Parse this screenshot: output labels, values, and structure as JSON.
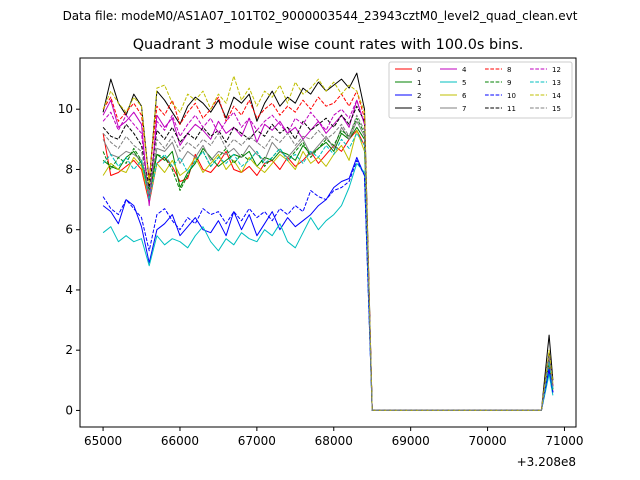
{
  "suptitle": "Data file: modeM0/AS1A07_101T02_9000003544_23943cztM0_level2_quad_clean.evt",
  "chart_data": {
    "type": "line",
    "title": "Quadrant 3 module wise count rates with 100.0s bins.",
    "xlabel": "",
    "ylabel": "",
    "x_offset_label": "+3.208e8",
    "xlim": [
      64700,
      71150
    ],
    "ylim": [
      -0.55,
      11.7
    ],
    "xticks": [
      65000,
      66000,
      67000,
      68000,
      69000,
      70000,
      71000
    ],
    "yticks": [
      0,
      2,
      4,
      6,
      8,
      10
    ],
    "grid": false,
    "legend_position": "top-right",
    "legend_columns": 4,
    "x": [
      65000,
      65100,
      65200,
      65300,
      65400,
      65500,
      65600,
      65700,
      65800,
      65900,
      66000,
      66100,
      66200,
      66300,
      66400,
      66500,
      66600,
      66700,
      66800,
      66900,
      67000,
      67100,
      67200,
      67300,
      67400,
      67500,
      67600,
      67700,
      67800,
      67900,
      68000,
      68100,
      68200,
      68300,
      68400,
      68500,
      70700,
      70800,
      70850
    ],
    "series": [
      {
        "name": "0",
        "color": "#ff0000",
        "dash": "solid",
        "values": [
          9.2,
          7.8,
          7.9,
          8.1,
          8.3,
          8.0,
          6.9,
          8.2,
          8.4,
          8.1,
          7.6,
          7.7,
          8.5,
          8.0,
          7.9,
          8.2,
          8.6,
          8.0,
          7.9,
          8.1,
          7.8,
          8.2,
          8.3,
          8.0,
          8.4,
          8.1,
          8.3,
          8.6,
          8.2,
          8.5,
          8.8,
          8.6,
          9.0,
          9.3,
          8.8,
          0.0,
          0.0,
          1.5,
          0.6
        ]
      },
      {
        "name": "1",
        "color": "#008000",
        "dash": "solid",
        "values": [
          8.3,
          8.1,
          8.0,
          8.4,
          8.6,
          8.2,
          7.1,
          8.5,
          8.3,
          8.6,
          7.4,
          7.9,
          8.2,
          8.7,
          8.4,
          8.1,
          8.3,
          8.5,
          8.4,
          8.6,
          8.1,
          8.4,
          8.3,
          8.6,
          8.5,
          8.3,
          8.8,
          8.5,
          8.7,
          8.9,
          8.6,
          9.2,
          9.0,
          9.4,
          9.0,
          0.0,
          0.0,
          1.6,
          0.7
        ]
      },
      {
        "name": "2",
        "color": "#0000ff",
        "dash": "solid",
        "values": [
          6.8,
          6.6,
          6.2,
          7.0,
          6.8,
          6.1,
          4.9,
          6.0,
          6.2,
          6.5,
          5.8,
          6.1,
          6.4,
          6.0,
          5.9,
          6.3,
          5.8,
          6.6,
          6.0,
          6.5,
          5.8,
          6.2,
          6.6,
          6.0,
          6.4,
          6.1,
          6.3,
          6.5,
          6.8,
          7.0,
          7.4,
          7.6,
          7.7,
          8.4,
          7.8,
          0.0,
          0.0,
          1.3,
          0.6
        ]
      },
      {
        "name": "3",
        "color": "#000000",
        "dash": "solid",
        "values": [
          9.9,
          11.0,
          10.2,
          9.8,
          10.5,
          10.1,
          7.6,
          10.6,
          10.3,
          9.9,
          9.5,
          10.1,
          10.4,
          10.2,
          9.9,
          10.3,
          9.7,
          10.4,
          10.2,
          10.5,
          9.6,
          10.2,
          10.6,
          10.1,
          10.4,
          10.2,
          10.7,
          10.5,
          10.9,
          10.6,
          10.8,
          11.0,
          10.7,
          11.2,
          10.0,
          0.0,
          0.0,
          2.5,
          1.0
        ]
      },
      {
        "name": "4",
        "color": "#bf00bf",
        "dash": "solid",
        "values": [
          9.8,
          10.3,
          9.4,
          9.6,
          9.9,
          9.5,
          6.8,
          9.8,
          9.4,
          9.7,
          8.8,
          9.2,
          9.5,
          9.3,
          9.0,
          9.6,
          9.2,
          9.4,
          9.1,
          9.7,
          8.9,
          9.5,
          9.3,
          9.6,
          9.2,
          9.4,
          9.0,
          9.3,
          9.6,
          9.2,
          9.5,
          9.8,
          9.4,
          10.3,
          9.5,
          0.0,
          0.0,
          1.8,
          0.8
        ]
      },
      {
        "name": "5",
        "color": "#00bfbf",
        "dash": "solid",
        "values": [
          5.9,
          6.1,
          5.6,
          5.8,
          5.6,
          5.7,
          4.8,
          5.8,
          5.5,
          5.7,
          5.6,
          5.4,
          5.8,
          6.1,
          5.6,
          5.3,
          5.7,
          5.5,
          5.9,
          5.7,
          5.6,
          6.0,
          5.8,
          6.2,
          5.6,
          5.4,
          5.9,
          6.4,
          6.0,
          6.3,
          6.5,
          6.8,
          7.4,
          8.2,
          7.9,
          0.0,
          0.0,
          1.2,
          0.5
        ]
      },
      {
        "name": "6",
        "color": "#bfbf00",
        "dash": "solid",
        "values": [
          7.8,
          8.2,
          8.0,
          7.9,
          8.4,
          8.1,
          7.0,
          8.2,
          7.9,
          8.3,
          7.8,
          8.0,
          8.4,
          7.9,
          8.2,
          8.5,
          8.0,
          8.3,
          7.9,
          8.4,
          8.1,
          7.9,
          8.2,
          8.5,
          8.3,
          8.0,
          8.6,
          8.2,
          8.4,
          8.1,
          8.5,
          8.8,
          8.3,
          9.3,
          8.6,
          0.0,
          0.0,
          1.7,
          0.7
        ]
      },
      {
        "name": "7",
        "color": "#808080",
        "dash": "solid",
        "values": [
          9.0,
          8.5,
          8.4,
          8.6,
          8.5,
          8.3,
          7.2,
          8.7,
          8.6,
          8.9,
          8.2,
          8.6,
          8.4,
          8.8,
          8.3,
          8.6,
          8.5,
          8.7,
          8.4,
          8.8,
          8.5,
          8.3,
          8.9,
          8.6,
          8.4,
          8.7,
          9.0,
          8.5,
          8.8,
          9.1,
          8.7,
          9.4,
          9.0,
          9.6,
          9.1,
          0.0,
          0.0,
          1.8,
          0.8
        ]
      },
      {
        "name": "8",
        "color": "#ff0000",
        "dash": "dashed",
        "values": [
          10.0,
          10.4,
          9.6,
          9.9,
          10.2,
          9.8,
          7.7,
          10.1,
          9.8,
          10.3,
          9.5,
          9.9,
          10.2,
          9.7,
          10.0,
          10.4,
          9.6,
          10.1,
          9.8,
          10.3,
          9.7,
          10.0,
          10.2,
          9.8,
          10.1,
          9.9,
          10.3,
          10.0,
          10.4,
          10.1,
          10.2,
          10.5,
          10.1,
          10.6,
          9.7,
          0.0,
          0.0,
          1.9,
          0.8
        ]
      },
      {
        "name": "9",
        "color": "#008000",
        "dash": "dashed",
        "values": [
          8.6,
          8.0,
          8.4,
          8.2,
          8.7,
          8.3,
          7.3,
          8.5,
          8.4,
          8.0,
          7.3,
          7.8,
          8.3,
          8.6,
          8.1,
          8.4,
          8.7,
          8.2,
          8.5,
          8.3,
          8.6,
          8.1,
          8.4,
          8.7,
          8.3,
          8.6,
          8.9,
          8.4,
          8.7,
          9.0,
          8.8,
          9.3,
          9.1,
          9.7,
          9.2,
          0.0,
          0.0,
          1.7,
          0.7
        ]
      },
      {
        "name": "10",
        "color": "#0000ff",
        "dash": "dashed",
        "values": [
          7.1,
          6.7,
          6.5,
          7.0,
          6.7,
          6.4,
          5.3,
          6.5,
          6.7,
          6.3,
          6.0,
          6.4,
          6.2,
          6.7,
          6.5,
          6.6,
          6.2,
          6.6,
          6.3,
          6.7,
          6.4,
          6.6,
          6.3,
          6.7,
          6.5,
          6.8,
          6.6,
          7.3,
          7.1,
          7.0,
          7.3,
          7.4,
          7.6,
          8.3,
          7.8,
          0.0,
          0.0,
          1.4,
          0.6
        ]
      },
      {
        "name": "11",
        "color": "#000000",
        "dash": "dashed",
        "values": [
          9.4,
          9.1,
          9.0,
          9.5,
          9.2,
          8.8,
          7.4,
          9.3,
          9.0,
          9.4,
          8.9,
          9.2,
          9.0,
          9.4,
          9.1,
          9.3,
          8.9,
          9.4,
          9.2,
          9.0,
          9.3,
          9.1,
          9.5,
          9.2,
          9.4,
          9.0,
          9.6,
          9.3,
          9.5,
          9.7,
          9.4,
          9.8,
          9.5,
          10.1,
          9.6,
          0.0,
          0.0,
          1.9,
          0.8
        ]
      },
      {
        "name": "12",
        "color": "#bf00bf",
        "dash": "dashed",
        "values": [
          9.6,
          9.9,
          9.3,
          9.8,
          9.5,
          9.2,
          6.9,
          9.6,
          9.3,
          9.8,
          9.1,
          9.5,
          9.8,
          9.4,
          9.7,
          9.2,
          9.6,
          9.9,
          9.4,
          9.7,
          9.3,
          9.6,
          9.8,
          9.5,
          9.2,
          9.7,
          9.5,
          9.9,
          9.6,
          9.3,
          9.8,
          10.0,
          9.7,
          10.3,
          9.5,
          0.0,
          0.0,
          1.8,
          0.8
        ]
      },
      {
        "name": "13",
        "color": "#00bfbf",
        "dash": "dashed",
        "values": [
          8.2,
          8.5,
          8.1,
          8.4,
          8.0,
          8.3,
          7.0,
          8.2,
          8.5,
          8.1,
          8.4,
          7.9,
          8.3,
          8.6,
          8.1,
          8.4,
          8.2,
          8.5,
          8.1,
          8.3,
          8.6,
          8.2,
          8.4,
          8.7,
          8.3,
          8.5,
          8.2,
          8.6,
          8.4,
          8.8,
          8.5,
          9.0,
          8.7,
          9.2,
          8.8,
          0.0,
          0.0,
          1.6,
          0.7
        ]
      },
      {
        "name": "14",
        "color": "#bfbf00",
        "dash": "dashed",
        "values": [
          10.0,
          10.6,
          10.2,
          9.9,
          10.4,
          10.1,
          7.5,
          10.7,
          10.8,
          10.2,
          9.9,
          10.5,
          10.3,
          10.6,
          10.0,
          10.5,
          10.2,
          11.1,
          10.3,
          10.7,
          10.1,
          10.6,
          10.4,
          10.8,
          10.2,
          10.9,
          10.5,
          10.7,
          11.0,
          10.6,
          10.9,
          10.5,
          10.8,
          10.6,
          9.9,
          0.0,
          0.0,
          2.0,
          0.9
        ]
      },
      {
        "name": "15",
        "color": "#808080",
        "dash": "dashed",
        "values": [
          9.2,
          8.9,
          8.7,
          9.1,
          8.8,
          8.6,
          7.2,
          9.0,
          8.7,
          9.1,
          8.6,
          8.9,
          8.7,
          9.0,
          8.8,
          9.2,
          8.7,
          9.0,
          8.8,
          9.1,
          8.9,
          8.7,
          9.1,
          8.9,
          9.2,
          8.8,
          9.1,
          9.0,
          9.3,
          9.0,
          9.2,
          9.5,
          9.1,
          9.8,
          9.3,
          0.0,
          0.0,
          1.8,
          0.8
        ]
      }
    ]
  }
}
